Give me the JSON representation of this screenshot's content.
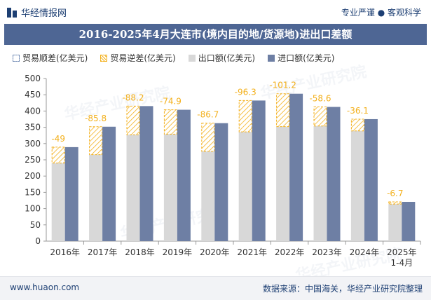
{
  "header": {
    "logo_text": "华经情报网",
    "slogan": "专业严谨 ● 客观科学"
  },
  "title": "2016-2025年4月大连市(境内目的地/货源地)进出口差额",
  "legend": {
    "shun": "贸易顺差(亿美元)",
    "ni": "贸易逆差(亿美元)",
    "ex": "出口额(亿美元)",
    "im": "进口额(亿美元)"
  },
  "footer": {
    "url": "www.huaon.com",
    "source": "数据来源：中国海关，华经产业研究院整理"
  },
  "watermark_text": "华经产业研究院",
  "colors": {
    "title_bg": "#4e6694",
    "export": "#d8d8d8",
    "import": "#6e7fa4",
    "deficit": "#f3b01c",
    "label": "#f3b01c"
  },
  "chart_data": {
    "type": "bar",
    "categories": [
      "2016年",
      "2017年",
      "2018年",
      "2019年",
      "2020年",
      "2021年",
      "2022年",
      "2023年",
      "2024年",
      "2025年\n1-4月"
    ],
    "series": [
      {
        "name": "出口额(亿美元)",
        "values": [
          240,
          266,
          327,
          329,
          276,
          336,
          352,
          354,
          339,
          114
        ]
      },
      {
        "name": "进口额(亿美元)",
        "values": [
          289,
          351.8,
          415.2,
          403.9,
          362.7,
          432.3,
          453.2,
          412.6,
          375.1,
          120.7
        ]
      },
      {
        "name": "贸易逆差(亿美元)",
        "values": [
          -49,
          -85.8,
          -88.2,
          -74.9,
          -86.7,
          -96.3,
          -101.2,
          -58.6,
          -36.1,
          -6.7
        ]
      }
    ],
    "balance_labels": [
      "-49",
      "-85.8",
      "-88.2",
      "-74.9",
      "-86.7",
      "-96.3",
      "-101.2",
      "-58.6",
      "-36.1",
      "-6.7"
    ],
    "ylim": [
      0,
      500
    ],
    "yticks": [
      0,
      50,
      100,
      150,
      200,
      250,
      300,
      350,
      400,
      450,
      500
    ],
    "grid": false,
    "legend_position": "top-left"
  }
}
